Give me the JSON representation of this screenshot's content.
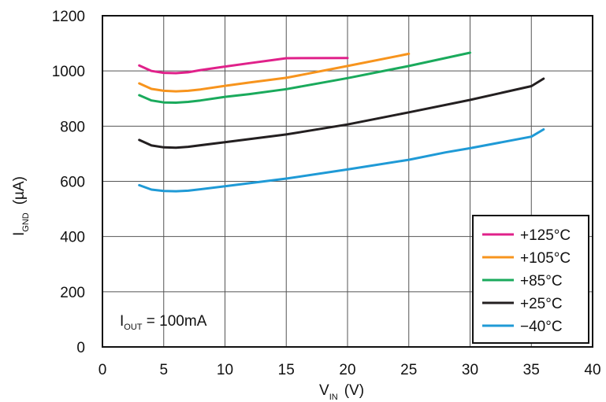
{
  "chart_data": {
    "type": "line",
    "xlabel": {
      "main": "V",
      "sub": "IN",
      "unit": "(V)"
    },
    "ylabel": {
      "main": "I",
      "sub": "GND",
      "unit": "(µA)"
    },
    "xlim": [
      0,
      40
    ],
    "ylim": [
      0,
      1200
    ],
    "x_ticks": [
      "0",
      "5",
      "10",
      "15",
      "20",
      "25",
      "30",
      "35",
      "40"
    ],
    "y_ticks": [
      "0",
      "200",
      "400",
      "600",
      "800",
      "1000",
      "1200"
    ],
    "grid": true,
    "legend_position": "bottom-right",
    "annotation": {
      "main": "I",
      "sub": "OUT",
      "rest": " = 100mA"
    },
    "series": [
      {
        "name": "+125°C",
        "color": "#e0218a",
        "points": [
          [
            3,
            1020
          ],
          [
            4,
            1000
          ],
          [
            5,
            993
          ],
          [
            6,
            992
          ],
          [
            7,
            995
          ],
          [
            8,
            1003
          ],
          [
            10,
            1016
          ],
          [
            12,
            1028
          ],
          [
            14,
            1040
          ],
          [
            15,
            1046
          ],
          [
            20,
            1047
          ]
        ]
      },
      {
        "name": "+105°C",
        "color": "#f7941d",
        "points": [
          [
            3,
            955
          ],
          [
            4,
            935
          ],
          [
            5,
            928
          ],
          [
            6,
            926
          ],
          [
            7,
            928
          ],
          [
            8,
            933
          ],
          [
            10,
            946
          ],
          [
            12,
            958
          ],
          [
            15,
            975
          ],
          [
            20,
            1018
          ],
          [
            25,
            1062
          ]
        ]
      },
      {
        "name": "+85°C",
        "color": "#1aaa5c",
        "points": [
          [
            3,
            912
          ],
          [
            4,
            893
          ],
          [
            5,
            886
          ],
          [
            6,
            885
          ],
          [
            7,
            888
          ],
          [
            8,
            893
          ],
          [
            10,
            906
          ],
          [
            12,
            916
          ],
          [
            15,
            934
          ],
          [
            20,
            974
          ],
          [
            25,
            1018
          ],
          [
            30,
            1066
          ]
        ]
      },
      {
        "name": "+25°C",
        "color": "#231f20",
        "points": [
          [
            3,
            750
          ],
          [
            4,
            730
          ],
          [
            5,
            723
          ],
          [
            6,
            722
          ],
          [
            7,
            725
          ],
          [
            10,
            742
          ],
          [
            15,
            770
          ],
          [
            20,
            806
          ],
          [
            25,
            850
          ],
          [
            30,
            895
          ],
          [
            35,
            945
          ],
          [
            36,
            972
          ]
        ]
      },
      {
        "name": "−40°C",
        "color": "#1f9ad6",
        "points": [
          [
            3,
            586
          ],
          [
            4,
            570
          ],
          [
            5,
            565
          ],
          [
            6,
            564
          ],
          [
            7,
            566
          ],
          [
            10,
            582
          ],
          [
            15,
            610
          ],
          [
            20,
            643
          ],
          [
            25,
            678
          ],
          [
            28,
            705
          ],
          [
            30,
            720
          ],
          [
            35,
            762
          ],
          [
            36,
            788
          ]
        ]
      }
    ]
  }
}
